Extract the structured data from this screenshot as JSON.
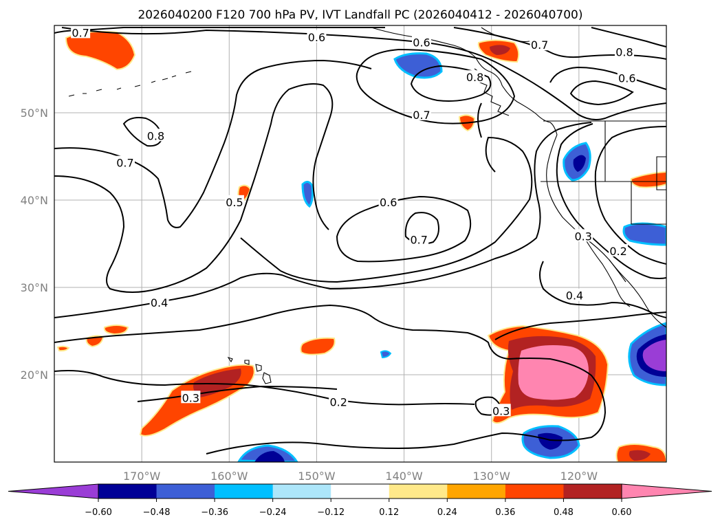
{
  "chart_data": {
    "type": "contour-map",
    "title": "2026040200 F120 700 hPa PV, IVT Landfall PC (2026040412 - 2026040700)",
    "projection": "PlateCarree",
    "lon_range": [
      -180,
      -110
    ],
    "lat_range": [
      10,
      60
    ],
    "x_ticks": [
      {
        "lon": -170,
        "label": "170°W"
      },
      {
        "lon": -160,
        "label": "160°W"
      },
      {
        "lon": -150,
        "label": "150°W"
      },
      {
        "lon": -140,
        "label": "140°W"
      },
      {
        "lon": -130,
        "label": "130°W"
      },
      {
        "lon": -120,
        "label": "120°W"
      }
    ],
    "y_ticks": [
      {
        "lat": 20,
        "label": "20°N"
      },
      {
        "lat": 30,
        "label": "30°N"
      },
      {
        "lat": 40,
        "label": "40°N"
      },
      {
        "lat": 50,
        "label": "50°N"
      }
    ],
    "contour_labels": [
      {
        "text": "0.7",
        "lon": -177.0,
        "lat": 59.1
      },
      {
        "text": "0.6",
        "lon": -150.0,
        "lat": 58.6
      },
      {
        "text": "0.6",
        "lon": -138.0,
        "lat": 58.0
      },
      {
        "text": "0.7",
        "lon": -124.5,
        "lat": 57.7
      },
      {
        "text": "0.8",
        "lon": -114.8,
        "lat": 56.9
      },
      {
        "text": "0.6",
        "lon": -114.5,
        "lat": 53.9
      },
      {
        "text": "0.8",
        "lon": -131.9,
        "lat": 54.0
      },
      {
        "text": "0.7",
        "lon": -138.0,
        "lat": 49.7
      },
      {
        "text": "0.8",
        "lon": -168.4,
        "lat": 47.3
      },
      {
        "text": "0.7",
        "lon": -171.9,
        "lat": 44.2
      },
      {
        "text": "0.5",
        "lon": -159.4,
        "lat": 39.7
      },
      {
        "text": "0.6",
        "lon": -141.8,
        "lat": 39.7
      },
      {
        "text": "0.7",
        "lon": -138.3,
        "lat": 35.4
      },
      {
        "text": "0.3",
        "lon": -119.5,
        "lat": 35.8
      },
      {
        "text": "0.2",
        "lon": -115.5,
        "lat": 34.1
      },
      {
        "text": "0.4",
        "lon": -120.5,
        "lat": 29.0
      },
      {
        "text": "0.4",
        "lon": -168.0,
        "lat": 28.2
      },
      {
        "text": "0.3",
        "lon": -164.4,
        "lat": 17.3
      },
      {
        "text": "0.2",
        "lon": -147.5,
        "lat": 16.8
      },
      {
        "text": "0.3",
        "lon": -128.9,
        "lat": 15.8
      }
    ],
    "colorbar": {
      "levels": [
        -0.6,
        -0.48,
        -0.36,
        -0.24,
        -0.12,
        0.12,
        0.24,
        0.36,
        0.48,
        0.6
      ],
      "tick_labels": [
        "−0.60",
        "−0.48",
        "−0.36",
        "−0.24",
        "−0.12",
        "0.12",
        "0.24",
        "0.36",
        "0.48",
        "0.60"
      ],
      "colors": [
        "#9a3dd6",
        "#000096",
        "#3d5fd6",
        "#00bfff",
        "#ade6fa",
        "#ffffff",
        "#ffe98a",
        "#ffa500",
        "#ff4500",
        "#b22222",
        "#ff85b0"
      ],
      "extend": "both"
    }
  }
}
